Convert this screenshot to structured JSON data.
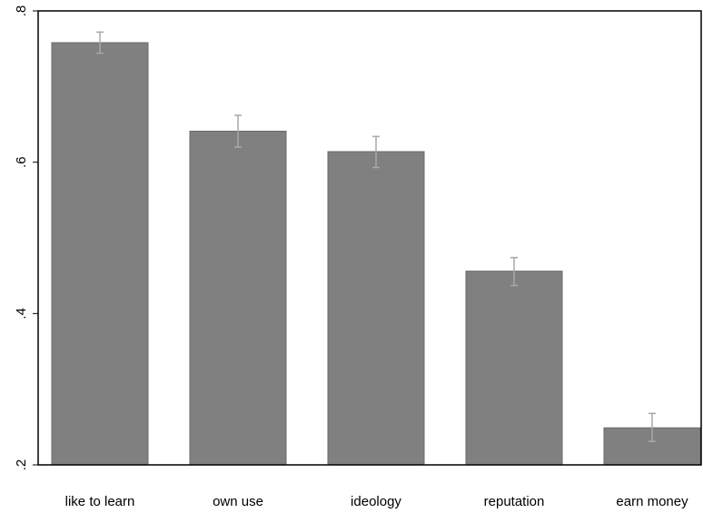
{
  "chart_data": {
    "type": "bar",
    "categories": [
      "like to learn",
      "own use",
      "ideology",
      "reputation",
      "earn money"
    ],
    "values": [
      0.758,
      0.641,
      0.614,
      0.456,
      0.249
    ],
    "error_low": [
      0.744,
      0.62,
      0.593,
      0.437,
      0.231
    ],
    "error_high": [
      0.772,
      0.662,
      0.634,
      0.474,
      0.268
    ],
    "title": "",
    "xlabel": "",
    "ylabel": "",
    "ylim": [
      0.2,
      0.8
    ],
    "yticks": [
      0.2,
      0.4,
      0.6,
      0.8
    ],
    "ytick_labels": [
      ".2",
      ".4",
      ".6",
      ".8"
    ],
    "grid": false,
    "legend": "none",
    "bar_color": "#808080",
    "bar_edge_color": "#6a6a6a",
    "error_color": "#a8a8a8"
  }
}
